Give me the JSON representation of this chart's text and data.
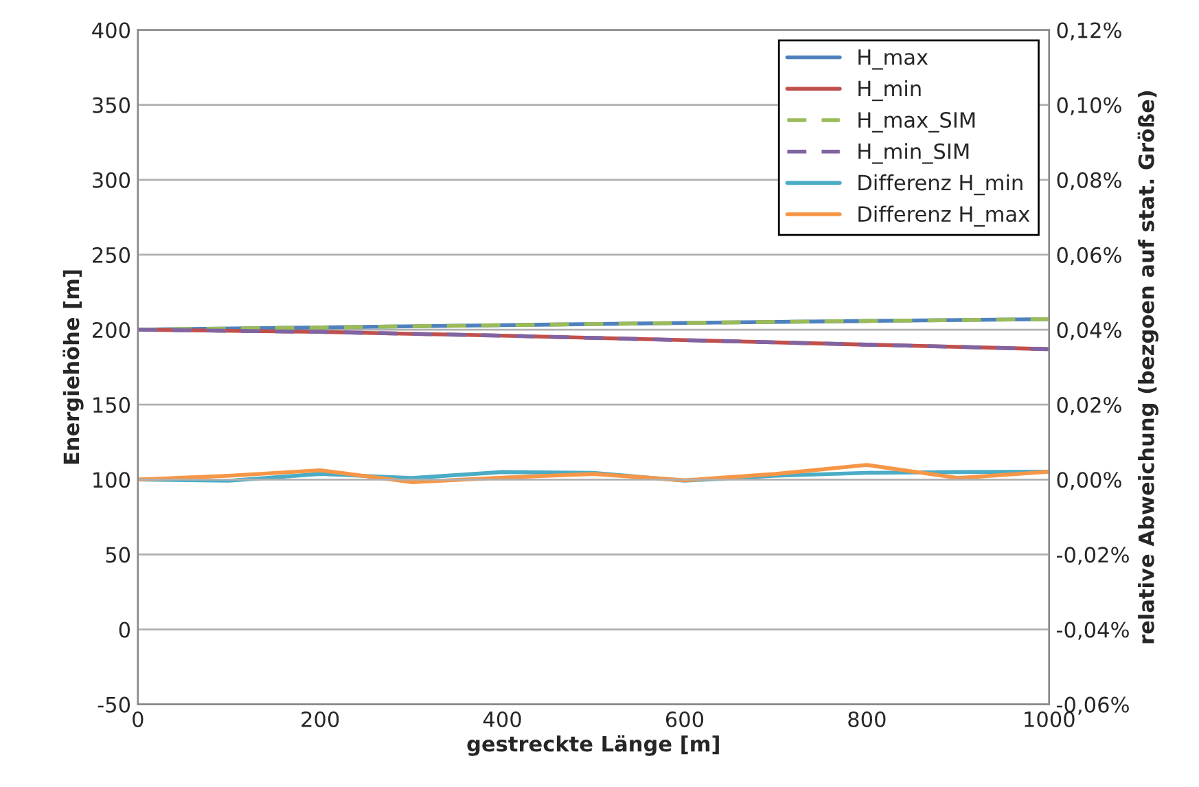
{
  "chart_data": {
    "type": "line",
    "xlabel": "gestreckte Länge [m]",
    "ylabel": "Energiehöhe [m]",
    "y2label": "relative Abweichung (bezgoen auf stat. Größe)",
    "series": [
      {
        "name": "H_max",
        "color": "#4f81bd",
        "line_style": "solid",
        "x": [
          0,
          200,
          400,
          600,
          800,
          1000
        ],
        "values": [
          200,
          201.5,
          203,
          204.5,
          205.8,
          207
        ]
      },
      {
        "name": "H_min",
        "color": "#c0504d",
        "line_style": "solid",
        "x": [
          0,
          200,
          400,
          600,
          800,
          1000
        ],
        "values": [
          200,
          198.5,
          196,
          193,
          190,
          187
        ]
      },
      {
        "name": "H_max_SIM",
        "color": "#9bbb59",
        "line_style": "dashed",
        "x": [
          0,
          200,
          400,
          600,
          800,
          1000
        ],
        "values": [
          200,
          201.5,
          203,
          204.5,
          205.8,
          207
        ]
      },
      {
        "name": "H_min_SIM",
        "color": "#8064a2",
        "line_style": "dashed",
        "x": [
          0,
          200,
          400,
          600,
          800,
          1000
        ],
        "values": [
          200,
          198.5,
          196,
          193,
          190,
          187
        ]
      },
      {
        "name": "Differenz H_min",
        "color": "#4bacc6",
        "line_style": "solid",
        "axis": "y2",
        "x": [
          0,
          100,
          200,
          300,
          400,
          500,
          600,
          700,
          800,
          900,
          1000
        ],
        "values": [
          0,
          -0.0003,
          0.0015,
          0.0004,
          0.002,
          0.0018,
          -0.0003,
          0.001,
          0.0018,
          0.002,
          0.0021
        ]
      },
      {
        "name": "Differenz H_max",
        "color": "#f79646",
        "line_style": "solid",
        "axis": "y2",
        "x": [
          0,
          100,
          200,
          300,
          400,
          500,
          600,
          700,
          800,
          900,
          1000
        ],
        "values": [
          0,
          0.001,
          0.0025,
          -0.0007,
          0.0005,
          0.0015,
          -0.0002,
          0.0015,
          0.0039,
          0.0004,
          0.0021
        ]
      }
    ],
    "xlim": [
      0,
      1000
    ],
    "xticks": [
      0,
      200,
      400,
      600,
      800,
      1000
    ],
    "ylim": [
      -50,
      400
    ],
    "yticks": [
      -50,
      0,
      50,
      100,
      150,
      200,
      250,
      300,
      350,
      400
    ],
    "y2lim": [
      -0.06,
      0.12
    ],
    "y2ticks": [
      {
        "value": -0.06,
        "label": "-0,06%"
      },
      {
        "value": -0.04,
        "label": "-0,04%"
      },
      {
        "value": -0.02,
        "label": "-0,02%"
      },
      {
        "value": 0,
        "label": "0,00%"
      },
      {
        "value": 0.02,
        "label": "0,02%"
      },
      {
        "value": 0.04,
        "label": "0,04%"
      },
      {
        "value": 0.06,
        "label": "0,06%"
      },
      {
        "value": 0.08,
        "label": "0,08%"
      },
      {
        "value": 0.1,
        "label": "0,10%"
      },
      {
        "value": 0.12,
        "label": "0,12%"
      }
    ],
    "grid": "y",
    "legend": "top right",
    "marker": "none"
  }
}
